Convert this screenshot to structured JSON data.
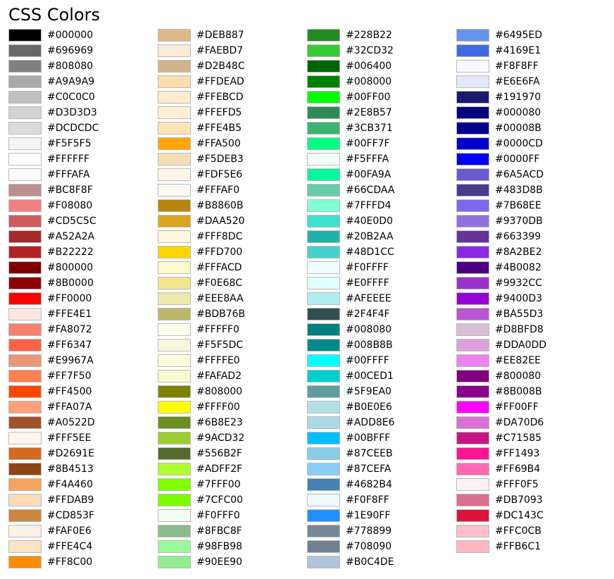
{
  "chart_data": {
    "type": "table",
    "title": "CSS Colors",
    "columns": [
      [
        "#000000",
        "#696969",
        "#808080",
        "#A9A9A9",
        "#C0C0C0",
        "#D3D3D3",
        "#DCDCDC",
        "#F5F5F5",
        "#FFFFFF",
        "#FFFAFA",
        "#BC8F8F",
        "#F08080",
        "#CD5C5C",
        "#A52A2A",
        "#B22222",
        "#800000",
        "#8B0000",
        "#FF0000",
        "#FFE4E1",
        "#FA8072",
        "#FF6347",
        "#E9967A",
        "#FF7F50",
        "#FF4500",
        "#FFA07A",
        "#A0522D",
        "#FFF5EE",
        "#D2691E",
        "#8B4513",
        "#F4A460",
        "#FFDAB9",
        "#CD853F",
        "#FAF0E6",
        "#FFE4C4",
        "#FF8C00"
      ],
      [
        "#DEB887",
        "#FAEBD7",
        "#D2B48C",
        "#FFDEAD",
        "#FFEBCD",
        "#FFEFD5",
        "#FFE4B5",
        "#FFA500",
        "#F5DEB3",
        "#FDF5E6",
        "#FFFAF0",
        "#B8860B",
        "#DAA520",
        "#FFF8DC",
        "#FFD700",
        "#FFFACD",
        "#F0E68C",
        "#EEE8AA",
        "#BDB76B",
        "#FFFFF0",
        "#F5F5DC",
        "#FFFFE0",
        "#FAFAD2",
        "#808000",
        "#FFFF00",
        "#6B8E23",
        "#9ACD32",
        "#556B2F",
        "#ADFF2F",
        "#7FFF00",
        "#7CFC00",
        "#F0FFF0",
        "#8FBC8F",
        "#98FB98",
        "#90EE90"
      ],
      [
        "#228B22",
        "#32CD32",
        "#006400",
        "#008000",
        "#00FF00",
        "#2E8B57",
        "#3CB371",
        "#00FF7F",
        "#F5FFFA",
        "#00FA9A",
        "#66CDAA",
        "#7FFFD4",
        "#40E0D0",
        "#20B2AA",
        "#48D1CC",
        "#F0FFFF",
        "#E0FFFF",
        "#AFEEEE",
        "#2F4F4F",
        "#008080",
        "#008B8B",
        "#00FFFF",
        "#00CED1",
        "#5F9EA0",
        "#B0E0E6",
        "#ADD8E6",
        "#00BFFF",
        "#87CEEB",
        "#87CEFA",
        "#4682B4",
        "#F0F8FF",
        "#1E90FF",
        "#778899",
        "#708090",
        "#B0C4DE"
      ],
      [
        "#6495ED",
        "#4169E1",
        "#F8F8FF",
        "#E6E6FA",
        "#191970",
        "#000080",
        "#00008B",
        "#0000CD",
        "#0000FF",
        "#6A5ACD",
        "#483D8B",
        "#7B68EE",
        "#9370DB",
        "#663399",
        "#8A2BE2",
        "#4B0082",
        "#9932CC",
        "#9400D3",
        "#BA55D3",
        "#D8BFD8",
        "#DDA0DD",
        "#EE82EE",
        "#800080",
        "#8B008B",
        "#FF00FF",
        "#DA70D6",
        "#C71585",
        "#FF1493",
        "#FF69B4",
        "#FFF0F5",
        "#DB7093",
        "#DC143C",
        "#FFC0CB",
        "#FFB6C1"
      ]
    ]
  }
}
